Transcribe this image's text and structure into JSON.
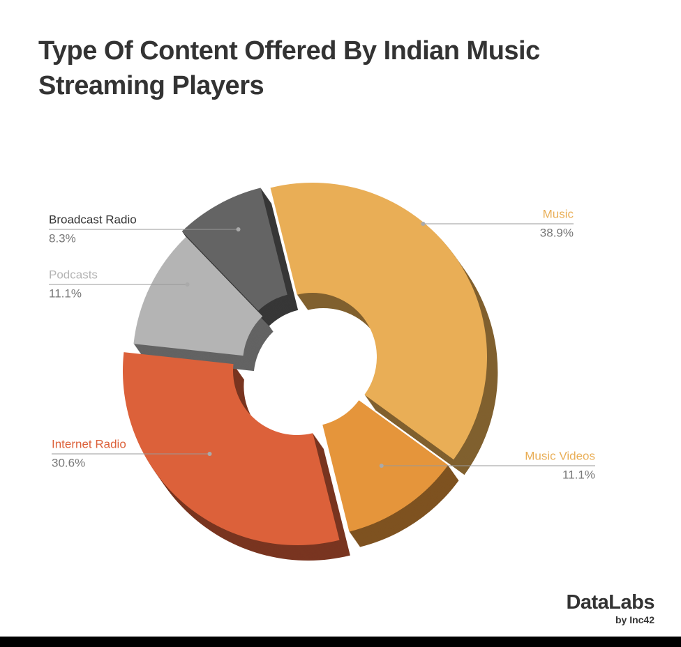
{
  "chart_data": {
    "type": "donut",
    "title": "Type Of Content Offered By Indian Music Streaming Players",
    "categories": [
      "Music",
      "Music Videos",
      "Internet Radio",
      "Podcasts",
      "Broadcast Radio"
    ],
    "values": [
      38.9,
      11.1,
      30.6,
      11.1,
      8.3
    ],
    "value_labels": [
      "38.9%",
      "11.1%",
      "30.6%",
      "11.1%",
      "8.3%"
    ],
    "colors": [
      "#e9ae56",
      "#e5953b",
      "#dc613a",
      "#b4b4b4",
      "#646464"
    ],
    "brand": "DataLabs",
    "brand_sub": "by Inc42"
  }
}
